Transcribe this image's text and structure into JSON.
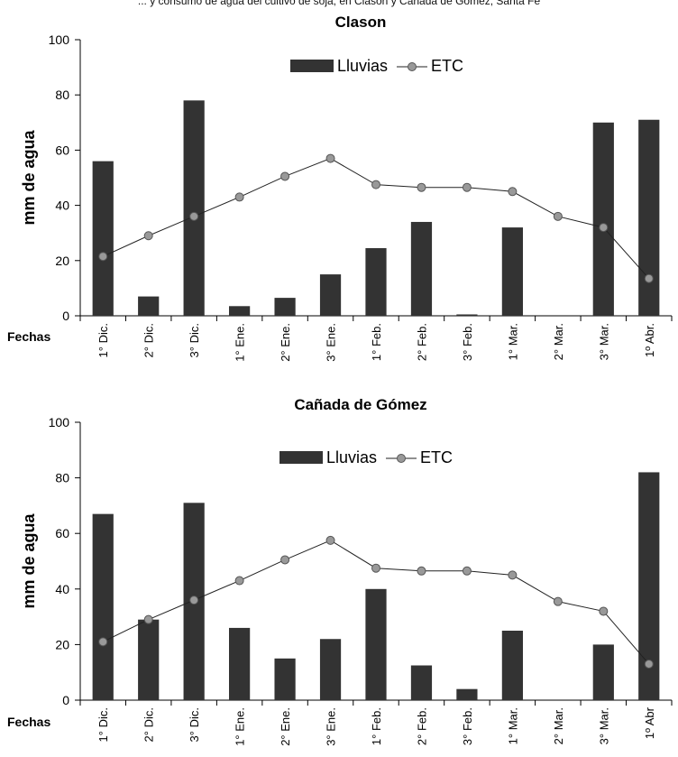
{
  "header": {
    "text": "... y consumo de agua del cultivo de soja, en Clason y Cañada de Gómez, Santa Fe"
  },
  "style": {
    "bar_color": "#333333",
    "line_color": "#222222",
    "marker_color": "#999999",
    "marker_stroke": "#555555"
  },
  "chart_data": [
    {
      "type": "bar",
      "title": "Clason",
      "ylabel": "mm de agua",
      "xlabel": "Fechas",
      "ylim": [
        0,
        100
      ],
      "yticks": [
        0,
        20,
        40,
        60,
        80,
        100
      ],
      "grid": false,
      "legend_position": "top-center",
      "categories": [
        "1° Dic.",
        "2° Dic.",
        "3° Dic.",
        "1° Ene.",
        "2° Ene.",
        "3° Ene.",
        "1° Feb.",
        "2° Feb.",
        "3° Feb.",
        "1° Mar.",
        "2° Mar.",
        "3° Mar.",
        "1º Abr."
      ],
      "series": [
        {
          "name": "Lluvias",
          "type": "bar",
          "values": [
            56,
            7,
            78,
            3.5,
            6.5,
            15,
            24.5,
            34,
            0.5,
            32,
            0,
            70,
            71
          ]
        },
        {
          "name": "ETC",
          "type": "line",
          "values": [
            21.5,
            29,
            36,
            43,
            50.5,
            57,
            47.5,
            46.5,
            46.5,
            45,
            36,
            32,
            13.5
          ]
        }
      ]
    },
    {
      "type": "bar",
      "title": "Cañada de Gómez",
      "ylabel": "mm de agua",
      "xlabel": "Fechas",
      "ylim": [
        0,
        100
      ],
      "yticks": [
        0,
        20,
        40,
        60,
        80,
        100
      ],
      "grid": false,
      "legend_position": "top-center",
      "categories": [
        "1° Dic.",
        "2° Dic.",
        "3° Dic.",
        "1° Ene.",
        "2° Ene.",
        "3° Ene.",
        "1° Feb.",
        "2° Feb.",
        "3° Feb.",
        "1° Mar.",
        "2° Mar.",
        "3° Mar.",
        "1º Abr"
      ],
      "series": [
        {
          "name": "Lluvias",
          "type": "bar",
          "values": [
            67,
            29,
            71,
            26,
            15,
            22,
            40,
            12.5,
            4,
            25,
            0,
            20,
            82
          ]
        },
        {
          "name": "ETC",
          "type": "line",
          "values": [
            21,
            29,
            36,
            43,
            50.5,
            57.5,
            47.5,
            46.5,
            46.5,
            45,
            35.5,
            32,
            13
          ]
        }
      ]
    }
  ]
}
